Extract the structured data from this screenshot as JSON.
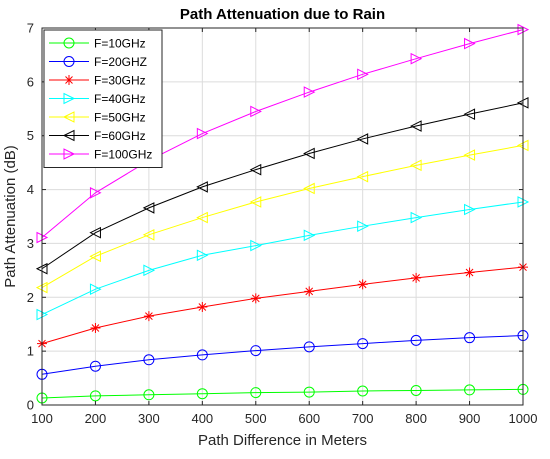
{
  "chart_data": {
    "type": "line",
    "title": "Path Attenuation due to Rain",
    "xlabel": "Path Difference in Meters",
    "ylabel": "Path Attenuation (dB)",
    "xlim": [
      100,
      1000
    ],
    "ylim": [
      0,
      7
    ],
    "xticks": [
      100,
      200,
      300,
      400,
      500,
      600,
      700,
      800,
      900,
      1000
    ],
    "yticks": [
      0,
      1,
      2,
      3,
      4,
      5,
      6,
      7
    ],
    "grid": true,
    "legend_position": "top-left",
    "x": [
      100,
      200,
      300,
      400,
      500,
      600,
      700,
      800,
      900,
      1000
    ],
    "series": [
      {
        "name": "F=10GHz",
        "color": "#00ff00",
        "marker": "circle",
        "values": [
          0.13,
          0.17,
          0.19,
          0.21,
          0.23,
          0.24,
          0.26,
          0.27,
          0.28,
          0.29
        ]
      },
      {
        "name": "F=20GHZ",
        "color": "#0000ff",
        "marker": "circle",
        "values": [
          0.57,
          0.72,
          0.84,
          0.93,
          1.01,
          1.08,
          1.14,
          1.2,
          1.25,
          1.29
        ]
      },
      {
        "name": "F=30GHz",
        "color": "#ff0000",
        "marker": "star",
        "values": [
          1.14,
          1.43,
          1.65,
          1.82,
          1.98,
          2.11,
          2.24,
          2.36,
          2.46,
          2.56
        ]
      },
      {
        "name": "F=40GHz",
        "color": "#00ffff",
        "marker": "triangle-right",
        "values": [
          1.68,
          2.15,
          2.5,
          2.78,
          2.96,
          3.15,
          3.32,
          3.48,
          3.63,
          3.77
        ]
      },
      {
        "name": "F=50GHz",
        "color": "#ffff00",
        "marker": "triangle-left",
        "values": [
          2.18,
          2.76,
          3.16,
          3.48,
          3.77,
          4.02,
          4.24,
          4.45,
          4.64,
          4.82
        ]
      },
      {
        "name": "F=60GHz",
        "color": "#000000",
        "marker": "triangle-left",
        "values": [
          2.53,
          3.2,
          3.66,
          4.05,
          4.37,
          4.67,
          4.94,
          5.18,
          5.4,
          5.61
        ]
      },
      {
        "name": "F=100GHz",
        "color": "#ff00ff",
        "marker": "triangle-right",
        "values": [
          3.11,
          3.94,
          4.54,
          5.04,
          5.45,
          5.81,
          6.14,
          6.43,
          6.71,
          6.97
        ]
      }
    ]
  }
}
